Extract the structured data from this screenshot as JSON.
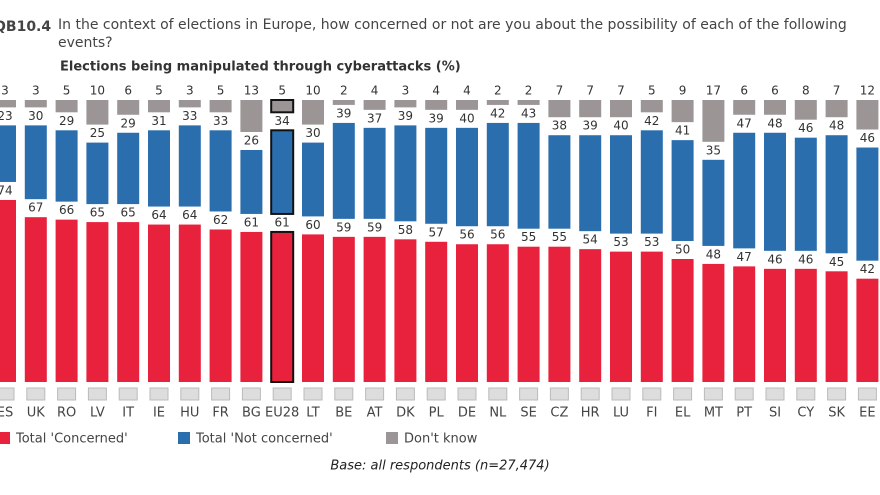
{
  "chart_data": {
    "type": "stacked-bar",
    "code": "QB10.4",
    "title": "In the context of elections in Europe, how concerned or not are you about the possibility of each of the following events?",
    "subtitle": "Elections being manipulated through cyberattacks (%)",
    "categories": [
      "ES",
      "UK",
      "RO",
      "LV",
      "IT",
      "IE",
      "HU",
      "FR",
      "BG",
      "EU28",
      "LT",
      "BE",
      "AT",
      "DK",
      "PL",
      "DE",
      "NL",
      "SE",
      "CZ",
      "HR",
      "LU",
      "FI",
      "EL",
      "MT",
      "PT",
      "SI",
      "CY",
      "SK",
      "EE"
    ],
    "highlight": "EU28",
    "series": [
      {
        "name": "Total 'Concerned'",
        "color": "#e8213d",
        "values": [
          74,
          67,
          66,
          65,
          65,
          64,
          64,
          62,
          61,
          61,
          60,
          59,
          59,
          58,
          57,
          56,
          56,
          55,
          55,
          54,
          53,
          53,
          50,
          48,
          47,
          46,
          46,
          45,
          42
        ]
      },
      {
        "name": "Total 'Not concerned'",
        "color": "#2b6eae",
        "values": [
          23,
          30,
          29,
          25,
          29,
          31,
          33,
          33,
          26,
          34,
          30,
          39,
          37,
          39,
          39,
          40,
          42,
          43,
          38,
          39,
          40,
          42,
          41,
          35,
          47,
          48,
          46,
          48,
          46
        ]
      },
      {
        "name": "Don't know",
        "color": "#9b9596",
        "values": [
          3,
          3,
          5,
          10,
          6,
          5,
          3,
          5,
          13,
          5,
          10,
          2,
          4,
          3,
          4,
          4,
          2,
          2,
          7,
          7,
          7,
          5,
          9,
          17,
          6,
          6,
          8,
          7,
          12
        ]
      }
    ],
    "footnote": "Base: all respondents (n=27,474)"
  }
}
